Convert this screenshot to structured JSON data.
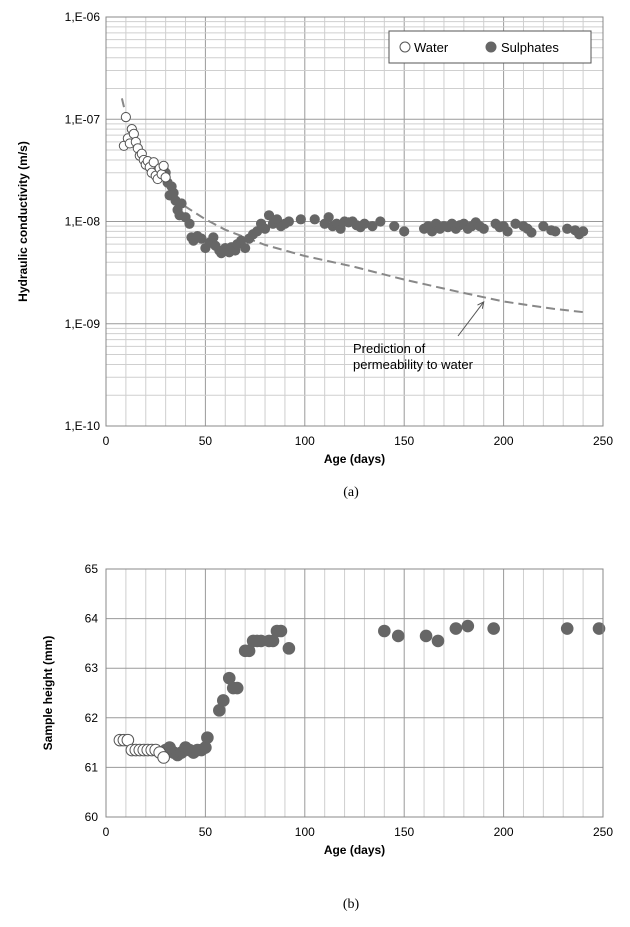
{
  "chart_data": [
    {
      "type": "scatter",
      "panel_label": "(a)",
      "xlabel": "Age (days)",
      "ylabel": "Hydraulic conductivity (m/s)",
      "xlim": [
        0,
        250
      ],
      "ylim": [
        1e-10,
        1e-06
      ],
      "yscale": "log",
      "x_ticks": [
        "0",
        "50",
        "100",
        "150",
        "200",
        "250"
      ],
      "y_ticks": [
        "1,E-10",
        "1,E-09",
        "1,E-08",
        "1,E-07",
        "1,E-06"
      ],
      "grid": true,
      "legend": {
        "placement": "top-right",
        "entries": [
          "Water",
          "Sulphates"
        ]
      },
      "annotation": {
        "lines": [
          "Prediction of",
          "permeability to water"
        ],
        "arrow_target": [
          190,
          1.75e-09
        ]
      },
      "series": [
        {
          "name": "Water",
          "marker": "open-circle",
          "color": "#ffffff",
          "points": [
            [
              9,
              5.5e-08
            ],
            [
              10,
              1.05e-07
            ],
            [
              11,
              6.5e-08
            ],
            [
              12,
              5.8e-08
            ],
            [
              13,
              8e-08
            ],
            [
              14,
              7.2e-08
            ],
            [
              15,
              6e-08
            ],
            [
              16,
              5.2e-08
            ],
            [
              17,
              4.4e-08
            ],
            [
              18,
              4.6e-08
            ],
            [
              19,
              4e-08
            ],
            [
              20,
              3.6e-08
            ],
            [
              21,
              3.9e-08
            ],
            [
              22,
              3.4e-08
            ],
            [
              23,
              3e-08
            ],
            [
              24,
              3.8e-08
            ],
            [
              25,
              2.8e-08
            ],
            [
              26,
              2.6e-08
            ],
            [
              27,
              3.3e-08
            ],
            [
              28,
              2.9e-08
            ],
            [
              29,
              3.5e-08
            ],
            [
              30,
              2.7e-08
            ]
          ]
        },
        {
          "name": "Sulphates",
          "marker": "filled-circle",
          "color": "#666666",
          "points": [
            [
              29,
              3.2e-08
            ],
            [
              30,
              3e-08
            ],
            [
              31,
              2.4e-08
            ],
            [
              32,
              1.8e-08
            ],
            [
              33,
              2.2e-08
            ],
            [
              34,
              1.9e-08
            ],
            [
              35,
              1.6e-08
            ],
            [
              36,
              1.3e-08
            ],
            [
              37,
              1.15e-08
            ],
            [
              38,
              1.5e-08
            ],
            [
              40,
              1.1e-08
            ],
            [
              42,
              9.5e-09
            ],
            [
              43,
              7e-09
            ],
            [
              44,
              6.5e-09
            ],
            [
              46,
              7.2e-09
            ],
            [
              48,
              6.8e-09
            ],
            [
              50,
              5.5e-09
            ],
            [
              52,
              6.2e-09
            ],
            [
              54,
              7e-09
            ],
            [
              55,
              5.8e-09
            ],
            [
              57,
              5.2e-09
            ],
            [
              58,
              4.9e-09
            ],
            [
              60,
              5.5e-09
            ],
            [
              62,
              5e-09
            ],
            [
              63,
              5.6e-09
            ],
            [
              65,
              5.2e-09
            ],
            [
              66,
              6e-09
            ],
            [
              68,
              6.5e-09
            ],
            [
              70,
              5.5e-09
            ],
            [
              72,
              6.8e-09
            ],
            [
              74,
              7.5e-09
            ],
            [
              76,
              8e-09
            ],
            [
              78,
              9.5e-09
            ],
            [
              80,
              8.5e-09
            ],
            [
              82,
              1.15e-08
            ],
            [
              84,
              9.5e-09
            ],
            [
              86,
              1.05e-08
            ],
            [
              88,
              9e-09
            ],
            [
              90,
              9.5e-09
            ],
            [
              92,
              1e-08
            ],
            [
              98,
              1.05e-08
            ],
            [
              105,
              1.05e-08
            ],
            [
              110,
              9.5e-09
            ],
            [
              112,
              1.1e-08
            ],
            [
              114,
              9e-09
            ],
            [
              116,
              9.5e-09
            ],
            [
              118,
              8.5e-09
            ],
            [
              120,
              1e-08
            ],
            [
              122,
              9.8e-09
            ],
            [
              124,
              1e-08
            ],
            [
              126,
              9.2e-09
            ],
            [
              128,
              8.8e-09
            ],
            [
              130,
              9.5e-09
            ],
            [
              134,
              9e-09
            ],
            [
              138,
              1e-08
            ],
            [
              145,
              9e-09
            ],
            [
              150,
              8e-09
            ],
            [
              160,
              8.5e-09
            ],
            [
              162,
              9e-09
            ],
            [
              164,
              8e-09
            ],
            [
              166,
              9.5e-09
            ],
            [
              168,
              8.5e-09
            ],
            [
              170,
              9e-09
            ],
            [
              172,
              8.8e-09
            ],
            [
              174,
              9.5e-09
            ],
            [
              176,
              8.5e-09
            ],
            [
              178,
              9.2e-09
            ],
            [
              180,
              9.5e-09
            ],
            [
              182,
              8.5e-09
            ],
            [
              184,
              9e-09
            ],
            [
              186,
              9.8e-09
            ],
            [
              188,
              9e-09
            ],
            [
              190,
              8.5e-09
            ],
            [
              196,
              9.5e-09
            ],
            [
              198,
              8.8e-09
            ],
            [
              200,
              9e-09
            ],
            [
              202,
              8e-09
            ],
            [
              206,
              9.5e-09
            ],
            [
              210,
              9e-09
            ],
            [
              212,
              8.5e-09
            ],
            [
              214,
              7.8e-09
            ],
            [
              220,
              9e-09
            ],
            [
              224,
              8.2e-09
            ],
            [
              226,
              8e-09
            ],
            [
              232,
              8.5e-09
            ],
            [
              236,
              8.2e-09
            ],
            [
              238,
              7.5e-09
            ],
            [
              240,
              8e-09
            ]
          ]
        },
        {
          "name": "Prediction of permeability to water",
          "type": "line",
          "style": "dashed",
          "color": "#888888",
          "points": [
            [
              8,
              1.6e-07
            ],
            [
              10,
              1.1e-07
            ],
            [
              15,
              6.5e-08
            ],
            [
              20,
              4.3e-08
            ],
            [
              25,
              3.1e-08
            ],
            [
              30,
              2.3e-08
            ],
            [
              40,
              1.4e-08
            ],
            [
              50,
              1.05e-08
            ],
            [
              60,
              8.3e-09
            ],
            [
              80,
              5.9e-09
            ],
            [
              100,
              4.6e-09
            ],
            [
              125,
              3.6e-09
            ],
            [
              150,
              2.7e-09
            ],
            [
              175,
              2.1e-09
            ],
            [
              200,
              1.65e-09
            ],
            [
              225,
              1.4e-09
            ],
            [
              240,
              1.3e-09
            ]
          ]
        }
      ]
    },
    {
      "type": "scatter",
      "panel_label": "(b)",
      "xlabel": "Age (days)",
      "ylabel": "Sample height (mm)",
      "xlim": [
        0,
        250
      ],
      "ylim": [
        60,
        65
      ],
      "x_ticks": [
        "0",
        "50",
        "100",
        "150",
        "200",
        "250"
      ],
      "y_ticks": [
        "60",
        "61",
        "62",
        "63",
        "64",
        "65"
      ],
      "grid": true,
      "series": [
        {
          "name": "Water",
          "marker": "open-circle",
          "color": "#ffffff",
          "points": [
            [
              7,
              61.55
            ],
            [
              9,
              61.55
            ],
            [
              11,
              61.55
            ],
            [
              13,
              61.35
            ],
            [
              15,
              61.35
            ],
            [
              17,
              61.35
            ],
            [
              19,
              61.35
            ],
            [
              21,
              61.35
            ],
            [
              23,
              61.35
            ],
            [
              25,
              61.35
            ],
            [
              27,
              61.3
            ],
            [
              29,
              61.2
            ]
          ]
        },
        {
          "name": "Sulphates",
          "marker": "filled-circle",
          "color": "#666666",
          "points": [
            [
              30,
              61.35
            ],
            [
              32,
              61.4
            ],
            [
              34,
              61.3
            ],
            [
              36,
              61.25
            ],
            [
              38,
              61.3
            ],
            [
              40,
              61.4
            ],
            [
              42,
              61.35
            ],
            [
              44,
              61.3
            ],
            [
              46,
              61.35
            ],
            [
              48,
              61.35
            ],
            [
              50,
              61.4
            ],
            [
              51,
              61.6
            ],
            [
              57,
              62.15
            ],
            [
              59,
              62.35
            ],
            [
              62,
              62.8
            ],
            [
              64,
              62.6
            ],
            [
              66,
              62.6
            ],
            [
              70,
              63.35
            ],
            [
              72,
              63.35
            ],
            [
              74,
              63.55
            ],
            [
              76,
              63.55
            ],
            [
              78,
              63.55
            ],
            [
              82,
              63.55
            ],
            [
              84,
              63.55
            ],
            [
              86,
              63.75
            ],
            [
              88,
              63.75
            ],
            [
              92,
              63.4
            ],
            [
              140,
              63.75
            ],
            [
              147,
              63.65
            ],
            [
              161,
              63.65
            ],
            [
              167,
              63.55
            ],
            [
              176,
              63.8
            ],
            [
              182,
              63.85
            ],
            [
              195,
              63.8
            ],
            [
              232,
              63.8
            ],
            [
              248,
              63.8
            ]
          ]
        }
      ]
    }
  ]
}
